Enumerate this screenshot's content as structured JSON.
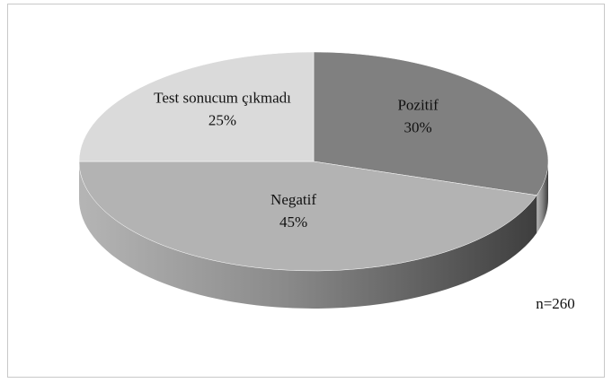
{
  "chart_data": {
    "type": "pie",
    "categories": [
      "Pozitif",
      "Negatif",
      "Test sonucum çıkmadı"
    ],
    "values": [
      30,
      45,
      25
    ],
    "value_labels": [
      "30%",
      "45%",
      "25%"
    ],
    "colors": [
      "#808080",
      "#b3b3b3",
      "#dadada"
    ],
    "annotation": "n=260"
  }
}
